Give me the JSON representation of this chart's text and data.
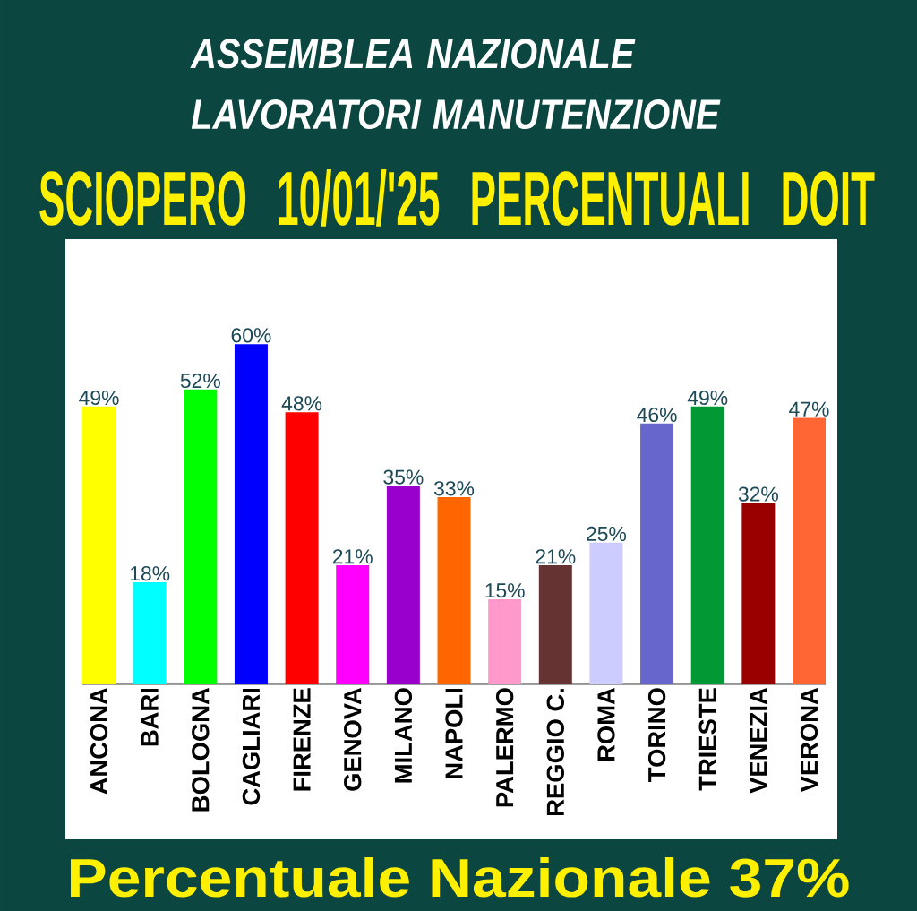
{
  "chart_data": {
    "type": "bar",
    "title": "SCIOPERO 10/01/'25 PERCENTUALI DOIT",
    "annotations": [
      "ASSEMBLEA NAZIONALE LAVORATORI MANUTENZIONE",
      "Percentuale Nazionale 37%"
    ],
    "categories": [
      "ANCONA",
      "BARI",
      "BOLOGNA",
      "CAGLIARI",
      "FIRENZE",
      "GENOVA",
      "MILANO",
      "NAPOLI",
      "PALERMO",
      "REGGIO C.",
      "ROMA",
      "TORINO",
      "TRIESTE",
      "VENEZIA",
      "VERONA"
    ],
    "values": [
      49,
      18,
      52,
      60,
      48,
      21,
      35,
      33,
      15,
      21,
      25,
      46,
      49,
      32,
      47
    ],
    "value_labels": [
      "49%",
      "18%",
      "52%",
      "60%",
      "48%",
      "21%",
      "35%",
      "33%",
      "15%",
      "21%",
      "25%",
      "46%",
      "49%",
      "32%",
      "47%"
    ],
    "colors": [
      "#ffff00",
      "#00ffff",
      "#00ff00",
      "#0000ff",
      "#ff0000",
      "#ff00ff",
      "#9900cc",
      "#ff6600",
      "#ff99cc",
      "#663333",
      "#ccccff",
      "#6666cc",
      "#009933",
      "#990000",
      "#ff6633"
    ],
    "tick_labels": "x"
  }
}
